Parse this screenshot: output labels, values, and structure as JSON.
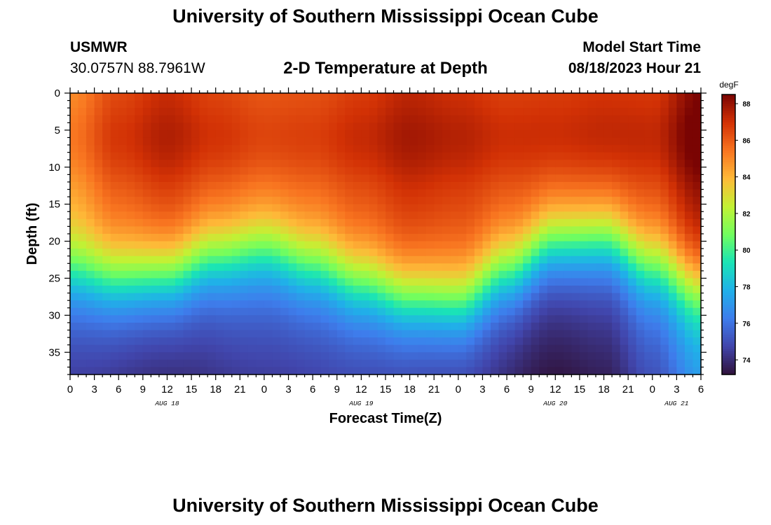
{
  "header": {
    "title": "University of Southern Mississippi Ocean Cube",
    "station": "USMWR",
    "coordinates": "30.0757N  88.7961W",
    "subtitle": "2-D Temperature at Depth",
    "model_start_label": "Model Start Time",
    "model_start_value": "08/18/2023 Hour 21"
  },
  "footer": {
    "title": "University of Southern Mississippi Ocean Cube"
  },
  "chart_data": {
    "type": "heatmap",
    "title": "2-D Temperature at Depth",
    "xlabel": "Forecast Time(Z)",
    "ylabel": "Depth (ft)",
    "x_range_hours": [
      0,
      78
    ],
    "y_range_ft": [
      0,
      38
    ],
    "x_tick_step_hours": 3,
    "x_tick_labels": [
      "0",
      "3",
      "6",
      "9",
      "12",
      "15",
      "18",
      "21",
      "0",
      "3",
      "6",
      "9",
      "12",
      "15",
      "18",
      "21",
      "0",
      "3",
      "6",
      "9",
      "12",
      "15",
      "18",
      "21",
      "0",
      "3",
      "6"
    ],
    "date_labels": [
      {
        "label": "AUG 18",
        "hour": 12
      },
      {
        "label": "AUG 19",
        "hour": 36
      },
      {
        "label": "AUG 20",
        "hour": 60
      },
      {
        "label": "AUG 21",
        "hour": 75
      }
    ],
    "y_ticks": [
      0,
      5,
      10,
      15,
      20,
      25,
      30,
      35
    ],
    "colorbar": {
      "unit": "degF",
      "min": 73.2,
      "max": 88.5,
      "ticks": [
        74,
        76,
        78,
        80,
        82,
        84,
        86,
        88
      ]
    },
    "colors": {
      "warm_max": "#7a0403",
      "warm": "#d23105",
      "orange": "#f7872b",
      "yellow_green": "#a4fc3c",
      "teal": "#1ae4b6",
      "blue": "#3a8cf3",
      "indigo": "#3e56c4",
      "cool_min": "#30123b"
    },
    "thermocline_depth_ft": [
      {
        "hour": 0,
        "depth": 24.0
      },
      {
        "hour": 6,
        "depth": 25.0
      },
      {
        "hour": 12,
        "depth": 24.5
      },
      {
        "hour": 18,
        "depth": 22.0
      },
      {
        "hour": 24,
        "depth": 21.0
      },
      {
        "hour": 30,
        "depth": 23.0
      },
      {
        "hour": 36,
        "depth": 25.5
      },
      {
        "hour": 42,
        "depth": 27.5
      },
      {
        "hour": 48,
        "depth": 28.0
      },
      {
        "hour": 54,
        "depth": 24.0
      },
      {
        "hour": 60,
        "depth": 20.0
      },
      {
        "hour": 66,
        "depth": 19.5
      },
      {
        "hour": 72,
        "depth": 23.0
      },
      {
        "hour": 78,
        "depth": 26.0
      }
    ],
    "surface_temp_degF": [
      {
        "hour": 0,
        "temp": 84.8
      },
      {
        "hour": 6,
        "temp": 86.3
      },
      {
        "hour": 12,
        "temp": 87.0
      },
      {
        "hour": 18,
        "temp": 86.4
      },
      {
        "hour": 24,
        "temp": 86.0
      },
      {
        "hour": 30,
        "temp": 86.1
      },
      {
        "hour": 36,
        "temp": 86.6
      },
      {
        "hour": 42,
        "temp": 87.2
      },
      {
        "hour": 48,
        "temp": 86.9
      },
      {
        "hour": 54,
        "temp": 86.5
      },
      {
        "hour": 60,
        "temp": 86.6
      },
      {
        "hour": 66,
        "temp": 86.8
      },
      {
        "hour": 72,
        "temp": 86.7
      },
      {
        "hour": 78,
        "temp": 88.3
      }
    ],
    "bottom_temp_degF": [
      {
        "hour": 0,
        "temp": 74.5
      },
      {
        "hour": 12,
        "temp": 74.0
      },
      {
        "hour": 24,
        "temp": 74.5
      },
      {
        "hour": 36,
        "temp": 74.8
      },
      {
        "hour": 48,
        "temp": 74.6
      },
      {
        "hour": 60,
        "temp": 73.3
      },
      {
        "hour": 66,
        "temp": 73.6
      },
      {
        "hour": 72,
        "temp": 75.0
      },
      {
        "hour": 78,
        "temp": 77.0
      }
    ]
  }
}
